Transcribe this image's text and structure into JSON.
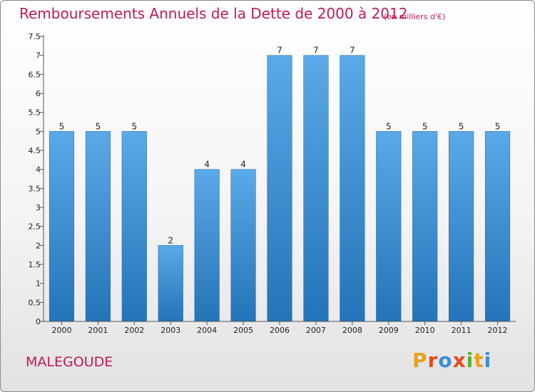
{
  "chart_data": {
    "type": "bar",
    "title": "Remboursements Annuels de la Dette de 2000 à 2012",
    "subtitle": "(en milliers d'€)",
    "categories": [
      "2000",
      "2001",
      "2002",
      "2003",
      "2004",
      "2005",
      "2006",
      "2007",
      "2008",
      "2009",
      "2010",
      "2011",
      "2012"
    ],
    "values": [
      5,
      5,
      5,
      2,
      4,
      4,
      7,
      7,
      7,
      5,
      5,
      5,
      5
    ],
    "data_labels": [
      "5",
      "5",
      "5",
      "2",
      "4",
      "4",
      "7",
      "7",
      "7",
      "5",
      "5",
      "5",
      "5"
    ],
    "ylim": [
      0,
      7.5
    ],
    "yticks": [
      "0",
      "0.5",
      "1",
      "1.5",
      "2",
      "2.5",
      "3",
      "3.5",
      "4",
      "4.5",
      "5",
      "5.5",
      "6",
      "6.5",
      "7",
      "7.5"
    ],
    "grid": false,
    "bar_color": "#3a8fd4"
  },
  "footer": {
    "commune": "MALEGOUDE",
    "logo_text": "Proxiti"
  }
}
